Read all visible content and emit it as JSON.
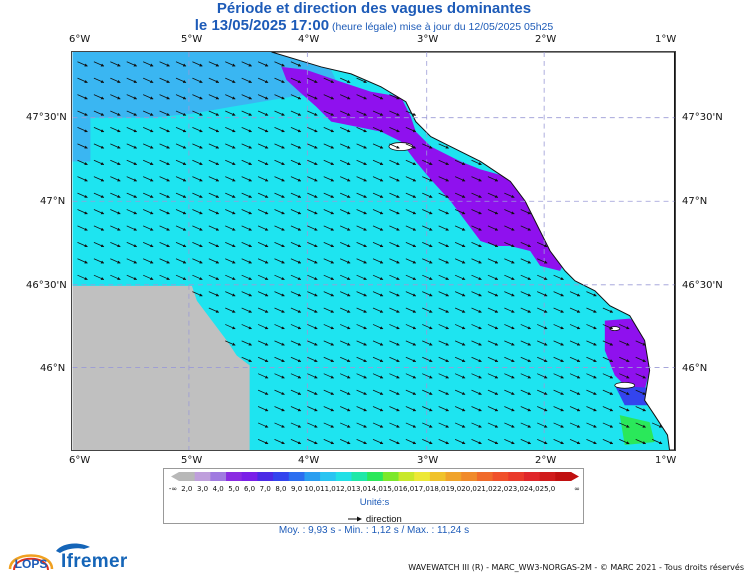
{
  "title": "Période et direction des vagues dominantes",
  "subtitle_main": "le 13/05/2025 17:00",
  "subtitle_note": " (heure légale) mise à jour du 12/05/2025 05h25",
  "lon_ticks": [
    "6°W",
    "5°W",
    "4°W",
    "3°W",
    "2°W",
    "1°W"
  ],
  "lat_ticks": [
    "47°30'N",
    "47°N",
    "46°30'N",
    "46°N"
  ],
  "legend": {
    "bins": [
      "-∞",
      "2,0",
      "3,0",
      "4,0",
      "5,0",
      "6,0",
      "7,0",
      "8,0",
      "9,0",
      "10,0",
      "11,0",
      "12,0",
      "13,0",
      "14,0",
      "15,0",
      "16,0",
      "17,0",
      "18,0",
      "19,0",
      "20,0",
      "21,0",
      "22,0",
      "23,0",
      "24,0",
      "25,0",
      "∞"
    ],
    "colors": [
      "#b8b8b8",
      "#bf9fdc",
      "#a07ae0",
      "#8a2be2",
      "#7a1fe8",
      "#4b2ae6",
      "#3344ee",
      "#2b6ef0",
      "#2a9ef0",
      "#29c4f2",
      "#22e0e6",
      "#1fe8a8",
      "#2ae85a",
      "#7ce82a",
      "#c8e82a",
      "#ede836",
      "#f0c22a",
      "#f0a32a",
      "#f08a2a",
      "#f06a2a",
      "#f0502a",
      "#ea3a2a",
      "#e0262a",
      "#d01b1b",
      "#c01010"
    ],
    "unit": "Unité:s",
    "direction_label": "direction"
  },
  "stats": "Moy. : 9,93 s   -   Min. : 1,12 s / Max. : 11,24 s",
  "credit": "WAVEWATCH III (R) - MARC_WW3-NORGAS-2M - © MARC 2021 - Tous droits réservés",
  "logos": {
    "lops": "LOPS",
    "ifremer": "Ifremer"
  },
  "map_colors": {
    "offshore": "#1ee4f0",
    "coastal": "#8f11ee",
    "mid": "#3ab6f2",
    "nodata": "#c0c0c0",
    "land": "#ffffff"
  }
}
